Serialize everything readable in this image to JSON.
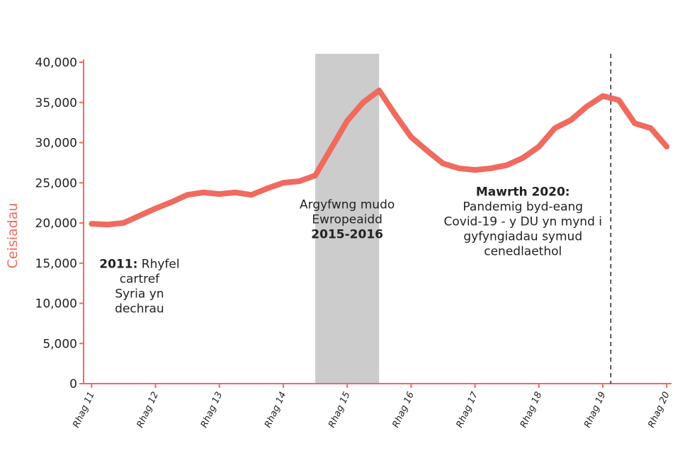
{
  "chart_data": {
    "type": "line",
    "ylabel": "Ceisiadau",
    "xlabel": "",
    "ylim": [
      0,
      40000
    ],
    "yticks": [
      0,
      5000,
      10000,
      15000,
      20000,
      25000,
      30000,
      35000,
      40000
    ],
    "ytick_labels": [
      "0",
      "5,000",
      "10,000",
      "15,000",
      "20,000",
      "25,000",
      "30,000",
      "35,000",
      "40,000"
    ],
    "xticks": [
      {
        "label": "Rhag 11",
        "x": 0
      },
      {
        "label": "Rhag 12",
        "x": 4
      },
      {
        "label": "Rhag 13",
        "x": 8
      },
      {
        "label": "Rhag 14",
        "x": 12
      },
      {
        "label": "Rhag 15",
        "x": 16
      },
      {
        "label": "Rhag 16",
        "x": 20
      },
      {
        "label": "Rhag 17",
        "x": 24
      },
      {
        "label": "Rhag 18",
        "x": 28
      },
      {
        "label": "Rhag 19",
        "x": 32
      },
      {
        "label": "Rhag 20",
        "x": 36
      }
    ],
    "xlim": [
      -0.5,
      36.3
    ],
    "series": [
      {
        "color": "#f06a5f",
        "x": [
          0,
          1,
          2,
          3,
          4,
          5,
          6,
          7,
          8,
          9,
          10,
          11,
          12,
          13,
          14,
          15,
          16,
          17,
          18,
          19,
          20,
          21,
          22,
          23,
          24,
          25,
          26,
          27,
          28,
          29,
          30,
          31,
          32,
          33,
          34,
          35,
          36
        ],
        "values": [
          19900,
          19800,
          20000,
          20900,
          21800,
          22600,
          23500,
          23800,
          23600,
          23800,
          23500,
          24300,
          25000,
          25200,
          25900,
          29300,
          32700,
          35000,
          36500,
          33500,
          30700,
          29000,
          27400,
          26800,
          26600,
          26800,
          27200,
          28100,
          29500,
          31800,
          32800,
          34500,
          35800,
          35300,
          32400,
          31800,
          29500
        ]
      }
    ],
    "shaded_region": {
      "x_start": 14,
      "x_end": 18,
      "color": "#cccccc"
    },
    "vline": {
      "x": 32.5,
      "style": "dashed"
    },
    "annotations": [
      {
        "lines": [
          {
            "bold": "2011:",
            "text": " Rhyfel"
          },
          {
            "text": "cartref"
          },
          {
            "text": "Syria yn"
          },
          {
            "text": "dechrau"
          }
        ],
        "x": 3,
        "y": 14400
      },
      {
        "lines": [
          {
            "text": "Argyfwng mudo"
          },
          {
            "text": "Ewropeaidd"
          },
          {
            "bold": "2015-2016",
            "text": ""
          }
        ],
        "x": 16,
        "y": 21800
      },
      {
        "lines": [
          {
            "bold": "Mawrth 2020:",
            "text": ""
          },
          {
            "text": "Pandemig byd-eang"
          },
          {
            "text": "Covid-19 - y DU yn mynd i"
          },
          {
            "text": "gyfyngiadau symud"
          },
          {
            "text": "cenedlaethol"
          }
        ],
        "x": 27,
        "y": 23400
      }
    ],
    "grid": false,
    "colors": {
      "accent": "#f06a5f",
      "shade": "#cccccc",
      "text": "#222222"
    }
  }
}
